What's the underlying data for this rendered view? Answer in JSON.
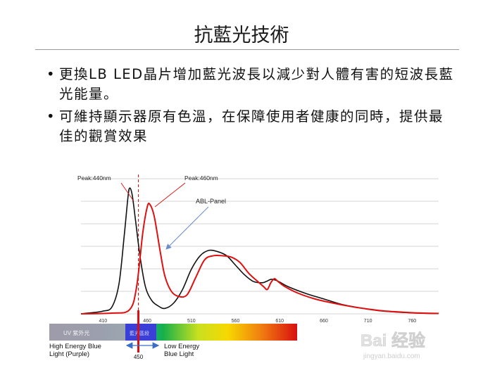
{
  "slide": {
    "title": "抗藍光技術",
    "bullets": [
      {
        "marker": "•",
        "text": "更換LB LED晶片增加藍光波長以減少對人體有害的短波長藍光能量。"
      },
      {
        "marker": "•",
        "text": "可維持顯示器原有色溫，在保障使用者健康的同時，提供最佳的觀賞效果"
      }
    ]
  },
  "chart_data": {
    "type": "line",
    "x_ticks": [
      "410",
      "460",
      "510",
      "560",
      "610",
      "660",
      "710",
      "760"
    ],
    "xlim": [
      385,
      790
    ],
    "ylim": [
      0,
      1.0
    ],
    "grid": true,
    "annotations": {
      "peak_440": "Peak:440nm",
      "peak_460": "Peak:460nm",
      "abl_panel": "ABL-Panel",
      "marker_450": "450",
      "uv_label": "UV 紫外光",
      "blue_label": "藍光區段",
      "high_energy": [
        "High Energy Blue",
        "Light (Purple)"
      ],
      "low_energy": [
        "Low Energy",
        "Blue Light"
      ]
    },
    "series": [
      {
        "color": "#111111",
        "x": [
          385,
          400,
          410,
          420,
          428,
          434,
          438,
          440,
          443,
          447,
          452,
          458,
          465,
          472,
          480,
          490,
          500,
          510,
          520,
          530,
          540,
          550,
          560,
          570,
          580,
          590,
          595,
          600,
          605,
          610,
          620,
          640,
          660,
          680,
          700,
          720,
          740,
          760,
          780,
          790
        ],
        "y": [
          0.0,
          0.01,
          0.02,
          0.05,
          0.22,
          0.58,
          0.85,
          0.93,
          0.88,
          0.68,
          0.42,
          0.2,
          0.1,
          0.06,
          0.04,
          0.08,
          0.18,
          0.33,
          0.43,
          0.47,
          0.46,
          0.43,
          0.36,
          0.29,
          0.24,
          0.23,
          0.24,
          0.255,
          0.25,
          0.235,
          0.2,
          0.15,
          0.11,
          0.07,
          0.045,
          0.025,
          0.014,
          0.007,
          0.003,
          0.002
        ]
      },
      {
        "color": "#e01010",
        "x": [
          385,
          420,
          440,
          448,
          455,
          460,
          463,
          468,
          475,
          480,
          487,
          495,
          505,
          515,
          525,
          535,
          545,
          555,
          565,
          575,
          585,
          592,
          596,
          600,
          604,
          608,
          615,
          630,
          650,
          670,
          690,
          710,
          730,
          750,
          770,
          790
        ],
        "y": [
          0.0,
          0.005,
          0.03,
          0.2,
          0.6,
          0.79,
          0.81,
          0.72,
          0.45,
          0.28,
          0.17,
          0.13,
          0.14,
          0.27,
          0.4,
          0.43,
          0.43,
          0.42,
          0.38,
          0.3,
          0.24,
          0.2,
          0.18,
          0.23,
          0.26,
          0.24,
          0.205,
          0.155,
          0.11,
          0.08,
          0.055,
          0.035,
          0.02,
          0.012,
          0.006,
          0.003
        ]
      }
    ]
  },
  "watermark": {
    "text": "Bai 经验",
    "sub": "jingyan.baidu.com"
  }
}
